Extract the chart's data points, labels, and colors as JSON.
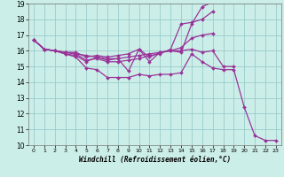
{
  "xlabel": "Windchill (Refroidissement éolien,°C)",
  "xlim": [
    -0.5,
    23.5
  ],
  "ylim": [
    10,
    19
  ],
  "yticks": [
    10,
    11,
    12,
    13,
    14,
    15,
    16,
    17,
    18,
    19
  ],
  "xticks": [
    0,
    1,
    2,
    3,
    4,
    5,
    6,
    7,
    8,
    9,
    10,
    11,
    12,
    13,
    14,
    15,
    16,
    17,
    18,
    19,
    20,
    21,
    22,
    23
  ],
  "bg_color": "#cceee8",
  "line_color": "#993399",
  "grid_color": "#99cccc",
  "series": [
    [
      16.7,
      16.1,
      16.0,
      15.8,
      15.6,
      14.9,
      14.8,
      14.3,
      14.3,
      14.3,
      14.5,
      14.4,
      14.5,
      14.5,
      14.6,
      15.8,
      15.3,
      14.9,
      14.8,
      14.8,
      12.4,
      10.6,
      10.3,
      10.3
    ],
    [
      16.7,
      16.1,
      16.0,
      15.8,
      15.7,
      15.3,
      15.6,
      15.4,
      15.5,
      14.7,
      16.1,
      15.3,
      15.9,
      16.0,
      16.0,
      16.1,
      15.9,
      16.0,
      15.0,
      15.0,
      null,
      null,
      null,
      null
    ],
    [
      16.7,
      16.1,
      16.0,
      15.9,
      15.8,
      15.7,
      15.6,
      15.5,
      15.5,
      15.6,
      15.7,
      15.8,
      15.9,
      16.0,
      16.2,
      16.8,
      17.0,
      17.1,
      null,
      null,
      null,
      null,
      null,
      null
    ],
    [
      16.7,
      16.1,
      16.0,
      15.9,
      15.8,
      15.4,
      15.5,
      15.3,
      15.3,
      15.4,
      15.5,
      15.7,
      15.8,
      16.1,
      17.7,
      17.8,
      18.0,
      18.5,
      null,
      null,
      null,
      null,
      null,
      null
    ],
    [
      16.7,
      16.1,
      16.0,
      15.9,
      15.9,
      15.6,
      15.7,
      15.6,
      15.7,
      15.8,
      16.1,
      15.6,
      15.9,
      16.0,
      15.9,
      17.7,
      18.8,
      19.1,
      null,
      null,
      null,
      null,
      null,
      null
    ]
  ]
}
